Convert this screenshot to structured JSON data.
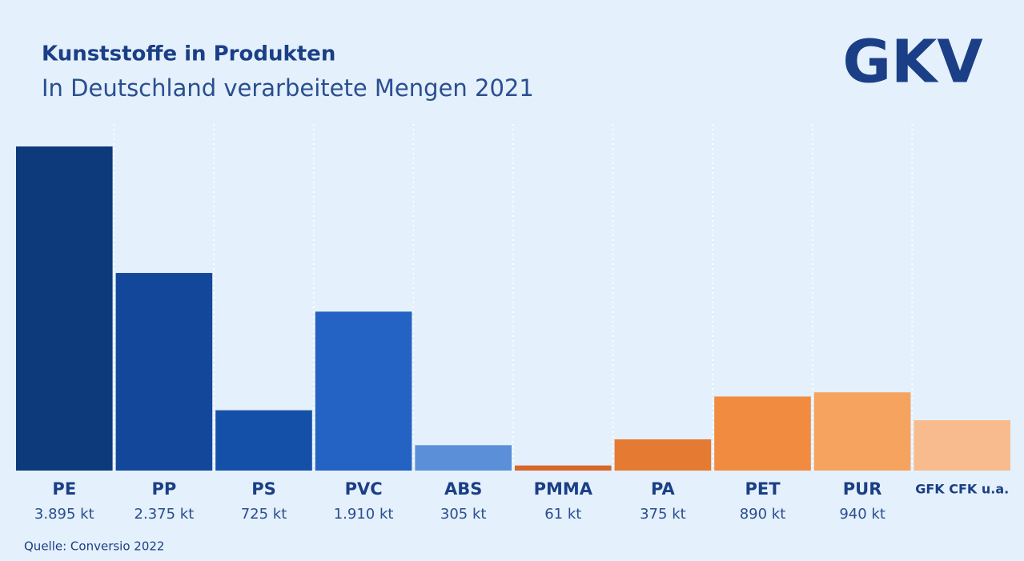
{
  "chart_data": {
    "type": "bar",
    "title": "Kunststoffe in Produkten",
    "subtitle": "In Deutschland verarbeitete Mengen 2021",
    "source": "Quelle: Conversio 2022",
    "logo": "GKV",
    "categories": [
      "PE",
      "PP",
      "PS",
      "PVC",
      "ABS",
      "PMMA",
      "PA",
      "PET",
      "PUR",
      "GFK CFK u.a."
    ],
    "values": [
      3895,
      2375,
      725,
      1910,
      305,
      61,
      375,
      890,
      940,
      605
    ],
    "value_labels": [
      "3.895 kt",
      "2.375 kt",
      "725 kt",
      "1.910 kt",
      "305 kt",
      "61 kt",
      "375 kt",
      "890 kt",
      "940 kt",
      null
    ],
    "colors": [
      "#0d3a7a",
      "#13479a",
      "#1550a8",
      "#2463c4",
      "#5b90d8",
      "#d8672a",
      "#e57a32",
      "#f08b40",
      "#f6a35f",
      "#f7bb8e"
    ]
  }
}
